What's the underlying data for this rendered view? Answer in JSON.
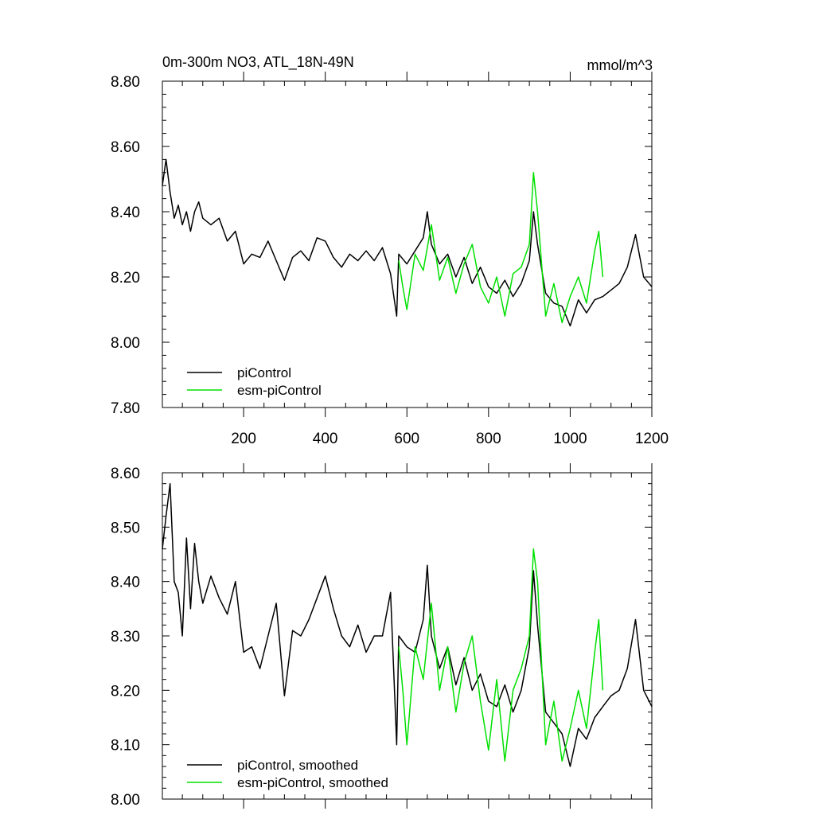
{
  "chart_data": [
    {
      "type": "line",
      "title": "0m-300m NO3, ATL_18N-49N",
      "units": "mmol/m^3",
      "xlabel": "",
      "ylabel": "",
      "xlim": [
        1,
        1200
      ],
      "ylim": [
        7.8,
        8.8
      ],
      "xticks": [
        200,
        400,
        600,
        800,
        1000,
        1200
      ],
      "yticks": [
        7.8,
        8.0,
        8.2,
        8.4,
        8.6,
        8.8
      ],
      "ytick_labels": [
        "7.80",
        "8.00",
        "8.20",
        "8.40",
        "8.60",
        "8.80"
      ],
      "legend_placement": "bottom-left",
      "series": [
        {
          "name": "piControl",
          "color": "#000000",
          "x": [
            1,
            10,
            20,
            30,
            40,
            50,
            60,
            70,
            80,
            90,
            100,
            120,
            140,
            160,
            180,
            200,
            220,
            240,
            260,
            280,
            300,
            320,
            340,
            360,
            380,
            400,
            420,
            440,
            460,
            480,
            500,
            520,
            540,
            560,
            575,
            580,
            600,
            620,
            640,
            650,
            660,
            680,
            700,
            720,
            740,
            760,
            780,
            800,
            820,
            840,
            860,
            880,
            900,
            910,
            920,
            940,
            960,
            980,
            1000,
            1020,
            1040,
            1060,
            1080,
            1100,
            1120,
            1140,
            1160,
            1180,
            1200
          ],
          "values": [
            8.48,
            8.56,
            8.46,
            8.38,
            8.42,
            8.36,
            8.4,
            8.34,
            8.4,
            8.43,
            8.38,
            8.36,
            8.38,
            8.31,
            8.34,
            8.24,
            8.27,
            8.26,
            8.31,
            8.25,
            8.19,
            8.26,
            8.28,
            8.25,
            8.32,
            8.31,
            8.26,
            8.23,
            8.27,
            8.25,
            8.28,
            8.25,
            8.29,
            8.21,
            8.08,
            8.27,
            8.24,
            8.28,
            8.32,
            8.4,
            8.3,
            8.24,
            8.27,
            8.2,
            8.26,
            8.18,
            8.23,
            8.17,
            8.15,
            8.19,
            8.14,
            8.18,
            8.25,
            8.4,
            8.3,
            8.15,
            8.12,
            8.11,
            8.05,
            8.13,
            8.09,
            8.13,
            8.14,
            8.16,
            8.18,
            8.23,
            8.33,
            8.2,
            8.17
          ]
        },
        {
          "name": "esm-piControl",
          "color": "#00e000",
          "x": [
            580,
            590,
            600,
            620,
            640,
            660,
            680,
            700,
            720,
            740,
            760,
            780,
            800,
            820,
            840,
            860,
            880,
            900,
            910,
            920,
            940,
            960,
            980,
            1000,
            1020,
            1040,
            1060,
            1070,
            1080
          ],
          "values": [
            8.25,
            8.17,
            8.1,
            8.27,
            8.22,
            8.36,
            8.19,
            8.26,
            8.15,
            8.24,
            8.3,
            8.17,
            8.12,
            8.2,
            8.08,
            8.21,
            8.23,
            8.3,
            8.52,
            8.4,
            8.08,
            8.18,
            8.06,
            8.14,
            8.2,
            8.12,
            8.28,
            8.34,
            8.2
          ]
        }
      ]
    },
    {
      "type": "line",
      "title": "",
      "xlabel": "",
      "ylabel": "",
      "xlim": [
        1,
        1200
      ],
      "ylim": [
        8.0,
        8.6
      ],
      "xticks": [
        200,
        400,
        600,
        800,
        1000,
        1200
      ],
      "yticks": [
        8.0,
        8.1,
        8.2,
        8.3,
        8.4,
        8.5,
        8.6
      ],
      "ytick_labels": [
        "8.00",
        "8.10",
        "8.20",
        "8.30",
        "8.40",
        "8.50",
        "8.60"
      ],
      "legend_placement": "bottom-left",
      "series": [
        {
          "name": "piControl, smoothed",
          "color": "#000000",
          "x": [
            1,
            10,
            20,
            30,
            40,
            50,
            60,
            70,
            80,
            90,
            100,
            120,
            140,
            160,
            180,
            200,
            220,
            240,
            260,
            280,
            300,
            320,
            340,
            360,
            380,
            400,
            420,
            440,
            460,
            480,
            500,
            520,
            540,
            560,
            575,
            580,
            600,
            620,
            640,
            650,
            660,
            680,
            700,
            720,
            740,
            760,
            780,
            800,
            820,
            840,
            860,
            880,
            900,
            910,
            920,
            940,
            960,
            980,
            1000,
            1020,
            1040,
            1060,
            1080,
            1100,
            1120,
            1140,
            1160,
            1180,
            1200
          ],
          "values": [
            8.46,
            8.52,
            8.58,
            8.4,
            8.38,
            8.3,
            8.48,
            8.35,
            8.47,
            8.4,
            8.36,
            8.41,
            8.37,
            8.34,
            8.4,
            8.27,
            8.28,
            8.24,
            8.3,
            8.36,
            8.19,
            8.31,
            8.3,
            8.33,
            8.37,
            8.41,
            8.35,
            8.3,
            8.28,
            8.32,
            8.27,
            8.3,
            8.3,
            8.38,
            8.1,
            8.3,
            8.28,
            8.27,
            8.33,
            8.43,
            8.3,
            8.24,
            8.28,
            8.21,
            8.26,
            8.2,
            8.23,
            8.18,
            8.17,
            8.21,
            8.16,
            8.2,
            8.28,
            8.42,
            8.32,
            8.16,
            8.14,
            8.12,
            8.06,
            8.13,
            8.11,
            8.15,
            8.17,
            8.19,
            8.2,
            8.24,
            8.33,
            8.2,
            8.17
          ]
        },
        {
          "name": "esm-piControl, smoothed",
          "color": "#00e000",
          "x": [
            580,
            590,
            600,
            620,
            640,
            660,
            680,
            700,
            720,
            740,
            760,
            780,
            800,
            820,
            840,
            860,
            880,
            900,
            910,
            920,
            940,
            960,
            980,
            1000,
            1020,
            1040,
            1060,
            1070,
            1080
          ],
          "values": [
            8.28,
            8.2,
            8.1,
            8.28,
            8.22,
            8.36,
            8.2,
            8.28,
            8.16,
            8.25,
            8.3,
            8.18,
            8.09,
            8.22,
            8.07,
            8.2,
            8.24,
            8.3,
            8.46,
            8.4,
            8.1,
            8.18,
            8.07,
            8.13,
            8.2,
            8.13,
            8.27,
            8.33,
            8.2
          ]
        }
      ]
    }
  ]
}
